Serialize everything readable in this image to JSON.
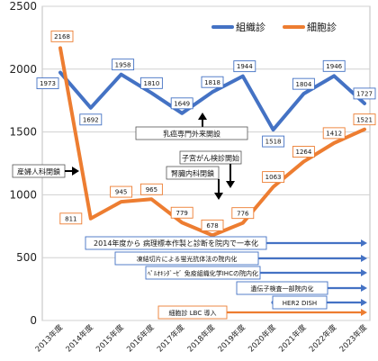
{
  "chart_data": {
    "type": "line",
    "categories": [
      "2013年度",
      "2014年度",
      "2015年度",
      "2016年度",
      "2017年度",
      "2018年度",
      "2019年度",
      "2020年度",
      "2021年度",
      "2022年度",
      "2023年度"
    ],
    "series": [
      {
        "name": "組織診",
        "color": "#4472C4",
        "values": [
          1973,
          1692,
          1958,
          1810,
          1649,
          1818,
          1944,
          1518,
          1804,
          1946,
          1727
        ]
      },
      {
        "name": "細胞診",
        "color": "#ED7D31",
        "values": [
          2168,
          811,
          945,
          965,
          779,
          678,
          776,
          1063,
          1264,
          1412,
          1521
        ]
      }
    ],
    "yticks": [
      0,
      500,
      1000,
      1500,
      2000,
      2500
    ],
    "ylim": [
      0,
      2500
    ],
    "grid": true,
    "legend": "top-right",
    "annotations": {
      "breast": "乳癌専門外来開設",
      "cervical": "子宮がん検診開始",
      "obgyn": "産婦人科閉鎖",
      "nephro": "腎臓内科閉鎖"
    },
    "timeline": [
      {
        "text": "2014年度から 病理標本作製と診断を院内で一本化",
        "color": "#4472C4"
      },
      {
        "text": "凍結切片による蛍光抗体法の院内化",
        "color": "#4472C4"
      },
      {
        "text": "ﾍﾟﾙｵｷｼﾀﾞｰｾﾞ 免疫組織化学IHCの院内化",
        "color": "#4472C4"
      },
      {
        "text": "遺伝子検査一部院内化",
        "color": "#4472C4"
      },
      {
        "text": "HER2 DISH",
        "color": "#4472C4"
      },
      {
        "text": "細胞診 LBC 導入",
        "color": "#ED7D31"
      }
    ]
  }
}
